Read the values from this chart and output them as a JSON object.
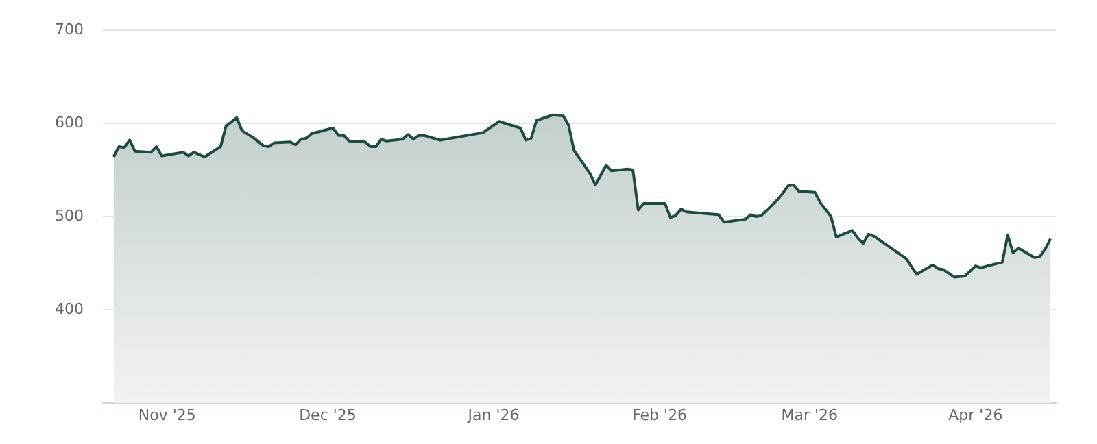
{
  "chart_data": {
    "type": "area",
    "x": [
      "2025-10-22",
      "2025-10-23",
      "2025-10-24",
      "2025-10-25",
      "2025-10-26",
      "2025-10-29",
      "2025-10-30",
      "2025-10-31",
      "2025-11-04",
      "2025-11-05",
      "2025-11-06",
      "2025-11-08",
      "2025-11-11",
      "2025-11-12",
      "2025-11-14",
      "2025-11-15",
      "2025-11-17",
      "2025-11-19",
      "2025-11-20",
      "2025-11-21",
      "2025-11-24",
      "2025-11-25",
      "2025-11-26",
      "2025-11-27",
      "2025-11-28",
      "2025-12-02",
      "2025-12-03",
      "2025-12-04",
      "2025-12-05",
      "2025-12-08",
      "2025-12-09",
      "2025-12-10",
      "2025-12-11",
      "2025-12-12",
      "2025-12-15",
      "2025-12-16",
      "2025-12-17",
      "2025-12-18",
      "2025-12-19",
      "2025-12-22",
      "2025-12-30",
      "2026-01-02",
      "2026-01-06",
      "2026-01-07",
      "2026-01-08",
      "2026-01-09",
      "2026-01-12",
      "2026-01-14",
      "2026-01-15",
      "2026-01-16",
      "2026-01-19",
      "2026-01-20",
      "2026-01-22",
      "2026-01-23",
      "2026-01-26",
      "2026-01-27",
      "2026-01-28",
      "2026-01-29",
      "2026-02-02",
      "2026-02-03",
      "2026-02-04",
      "2026-02-05",
      "2026-02-06",
      "2026-02-10",
      "2026-02-12",
      "2026-02-13",
      "2026-02-17",
      "2026-02-18",
      "2026-02-19",
      "2026-02-20",
      "2026-02-23",
      "2026-02-24",
      "2026-02-25",
      "2026-02-26",
      "2026-02-27",
      "2026-03-02",
      "2026-03-03",
      "2026-03-05",
      "2026-03-06",
      "2026-03-09",
      "2026-03-10",
      "2026-03-11",
      "2026-03-12",
      "2026-03-13",
      "2026-03-15",
      "2026-03-19",
      "2026-03-21",
      "2026-03-24",
      "2026-03-25",
      "2026-03-26",
      "2026-03-28",
      "2026-03-30",
      "2026-04-01",
      "2026-04-02",
      "2026-04-06",
      "2026-04-07",
      "2026-04-08",
      "2026-04-09",
      "2026-04-12",
      "2026-04-13",
      "2026-04-14",
      "2026-04-15"
    ],
    "series": [
      {
        "color": "#1d4a45",
        "values": [
          564,
          575,
          574,
          582,
          570,
          569,
          575,
          565,
          569,
          565,
          569,
          564,
          575,
          597,
          606,
          592,
          585,
          576,
          575,
          579,
          580,
          577,
          583,
          584,
          589,
          595,
          587,
          587,
          581,
          580,
          575,
          575,
          583,
          581,
          583,
          588,
          583,
          587,
          587,
          582,
          590,
          602,
          595,
          582,
          584,
          603,
          609,
          608,
          598,
          571,
          546,
          534,
          555,
          549,
          551,
          550,
          507,
          514,
          514,
          499,
          501,
          508,
          505,
          503,
          502,
          494,
          497,
          502,
          500,
          501,
          518,
          525,
          533,
          534,
          527,
          526,
          515,
          500,
          478,
          485,
          477,
          471,
          481,
          479,
          471,
          455,
          438,
          448,
          444,
          443,
          435,
          436,
          447,
          445,
          451,
          480,
          461,
          466,
          456,
          457,
          465,
          476
        ]
      }
    ],
    "xlim": [
      "2025-10-20",
      "2026-04-16"
    ],
    "xticks": [
      {
        "value": "2025-11-01",
        "label": "Nov '25"
      },
      {
        "value": "2025-12-01",
        "label": "Dec '25"
      },
      {
        "value": "2026-01-01",
        "label": "Jan '26"
      },
      {
        "value": "2026-02-01",
        "label": "Feb '26"
      },
      {
        "value": "2026-03-01",
        "label": "Mar '26"
      },
      {
        "value": "2026-04-01",
        "label": "Apr '26"
      }
    ],
    "ylim": [
      300,
      700
    ],
    "yticks": [
      400,
      500,
      600,
      700
    ],
    "grid": "y",
    "legend": false
  }
}
